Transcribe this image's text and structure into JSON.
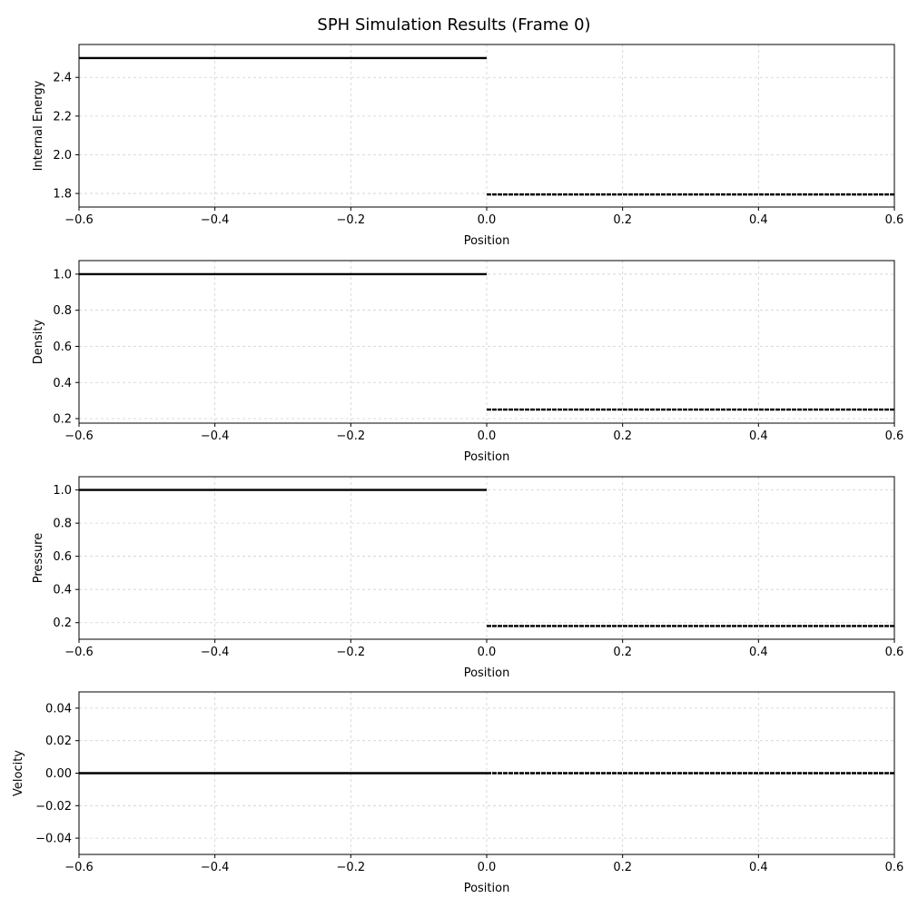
{
  "figure": {
    "title": "SPH Simulation Results (Frame 0)"
  },
  "chart_data": [
    {
      "type": "line",
      "xlabel": "Position",
      "ylabel": "Internal Energy",
      "xlim": [
        -0.6,
        0.6
      ],
      "ylim": [
        1.73,
        2.57
      ],
      "xticks": [
        -0.6,
        -0.4,
        -0.2,
        0.0,
        0.2,
        0.4,
        0.6
      ],
      "xtick_labels": [
        "−0.6",
        "−0.4",
        "−0.2",
        "0.0",
        "0.2",
        "0.4",
        "0.6"
      ],
      "yticks": [
        1.8,
        2.0,
        2.2,
        2.4
      ],
      "ytick_labels": [
        "1.8",
        "2.0",
        "2.2",
        "2.4"
      ],
      "grid": true,
      "series": [
        {
          "x": [
            -0.6,
            0.0
          ],
          "y": [
            2.5,
            2.5
          ],
          "style": "solid"
        },
        {
          "x": [
            0.0,
            0.6
          ],
          "y": [
            1.795,
            1.795
          ],
          "style": "dashed-dense"
        }
      ]
    },
    {
      "type": "line",
      "xlabel": "Position",
      "ylabel": "Density",
      "xlim": [
        -0.6,
        0.6
      ],
      "ylim": [
        0.175,
        1.075
      ],
      "xticks": [
        -0.6,
        -0.4,
        -0.2,
        0.0,
        0.2,
        0.4,
        0.6
      ],
      "xtick_labels": [
        "−0.6",
        "−0.4",
        "−0.2",
        "0.0",
        "0.2",
        "0.4",
        "0.6"
      ],
      "yticks": [
        0.2,
        0.4,
        0.6,
        0.8,
        1.0
      ],
      "ytick_labels": [
        "0.2",
        "0.4",
        "0.6",
        "0.8",
        "1.0"
      ],
      "grid": true,
      "series": [
        {
          "x": [
            -0.6,
            0.0
          ],
          "y": [
            1.0,
            1.0
          ],
          "style": "solid"
        },
        {
          "x": [
            0.0,
            0.6
          ],
          "y": [
            0.25,
            0.25
          ],
          "style": "dashed-dense"
        }
      ]
    },
    {
      "type": "line",
      "xlabel": "Position",
      "ylabel": "Pressure",
      "xlim": [
        -0.6,
        0.6
      ],
      "ylim": [
        0.1,
        1.08
      ],
      "xticks": [
        -0.6,
        -0.4,
        -0.2,
        0.0,
        0.2,
        0.4,
        0.6
      ],
      "xtick_labels": [
        "−0.6",
        "−0.4",
        "−0.2",
        "0.0",
        "0.2",
        "0.4",
        "0.6"
      ],
      "yticks": [
        0.2,
        0.4,
        0.6,
        0.8,
        1.0
      ],
      "ytick_labels": [
        "0.2",
        "0.4",
        "0.6",
        "0.8",
        "1.0"
      ],
      "grid": true,
      "series": [
        {
          "x": [
            -0.6,
            0.0
          ],
          "y": [
            1.0,
            1.0
          ],
          "style": "solid"
        },
        {
          "x": [
            0.0,
            0.6
          ],
          "y": [
            0.18,
            0.18
          ],
          "style": "dashed-dense"
        }
      ]
    },
    {
      "type": "line",
      "xlabel": "Position",
      "ylabel": "Velocity",
      "xlim": [
        -0.6,
        0.6
      ],
      "ylim": [
        -0.05,
        0.05
      ],
      "xticks": [
        -0.6,
        -0.4,
        -0.2,
        0.0,
        0.2,
        0.4,
        0.6
      ],
      "xtick_labels": [
        "−0.6",
        "−0.4",
        "−0.2",
        "0.0",
        "0.2",
        "0.4",
        "0.6"
      ],
      "yticks": [
        -0.04,
        -0.02,
        0.0,
        0.02,
        0.04
      ],
      "ytick_labels": [
        "−0.04",
        "−0.02",
        "0.00",
        "0.02",
        "0.04"
      ],
      "grid": true,
      "series": [
        {
          "x": [
            -0.6,
            0.0
          ],
          "y": [
            0.0,
            0.0
          ],
          "style": "solid"
        },
        {
          "x": [
            0.0,
            0.6
          ],
          "y": [
            0.0,
            0.0
          ],
          "style": "dashed-dense"
        }
      ]
    }
  ]
}
